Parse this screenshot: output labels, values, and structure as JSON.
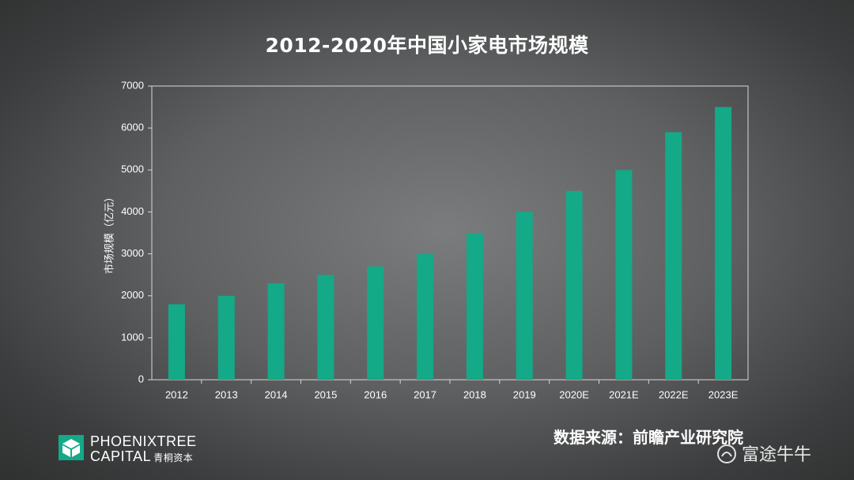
{
  "title": "2012-2020年中国小家电市场规模",
  "source": "数据来源：前瞻产业研究院",
  "logo": {
    "icon": "phoenixtree-logo-icon",
    "line1": "PHOENIXTREE",
    "line2": "CAPITAL",
    "line2_cn": "青桐资本"
  },
  "watermark": {
    "icon": "futu-logo-icon",
    "text": "富途牛牛"
  },
  "colors": {
    "bar": "#14a987",
    "axis": "#d8d8d8",
    "text": "#ffffff"
  },
  "chart_data": {
    "type": "bar",
    "categories": [
      "2012",
      "2013",
      "2014",
      "2015",
      "2016",
      "2017",
      "2018",
      "2019",
      "2020E",
      "2021E",
      "2022E",
      "2023E"
    ],
    "values": [
      1800,
      2000,
      2300,
      2500,
      2700,
      3000,
      3500,
      4000,
      4500,
      5000,
      5900,
      6500
    ],
    "title": "2012-2020年中国小家电市场规模",
    "xlabel": "",
    "ylabel": "市场规模（亿元）",
    "ylim": [
      0,
      7000
    ],
    "yticks": [
      "0",
      "1000",
      "2000",
      "3000",
      "4000",
      "5000",
      "6000",
      "7000"
    ],
    "grid": false,
    "legend": "none"
  }
}
